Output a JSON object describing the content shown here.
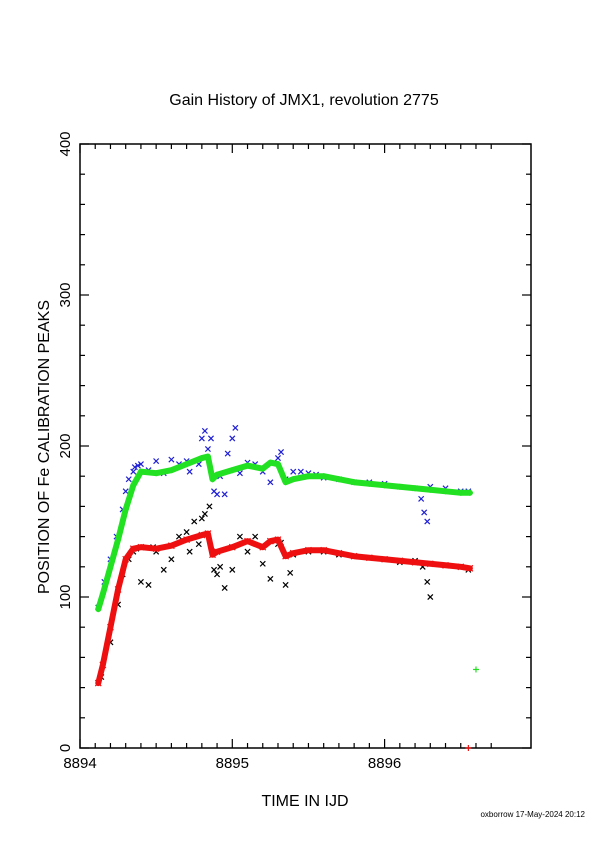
{
  "chart_data": {
    "type": "scatter",
    "title": "Gain History of JMX1, revolution 2775",
    "xlabel": "TIME IN IJD",
    "ylabel": "POSITION OF Fe CALIBRATION PEAKS",
    "xlim": [
      8894,
      8896.7
    ],
    "ylim": [
      0,
      400
    ],
    "x_ticks": [
      8894,
      8895,
      8896
    ],
    "y_ticks": [
      0,
      100,
      200,
      300,
      400
    ],
    "grid": false,
    "colors": {
      "upper_fit": "#22e022",
      "upper_points": "#1f1fd6",
      "lower_fit": "#ee1010",
      "lower_points": "#000000"
    },
    "series": [
      {
        "marker": "x",
        "color": "#1f1fd6",
        "x": [
          8894.12,
          8894.16,
          8894.2,
          8894.24,
          8894.28,
          8894.3,
          8894.32,
          8894.35,
          8894.36,
          8894.38,
          8894.4,
          8894.45,
          8894.5,
          8894.55,
          8894.6,
          8894.65,
          8894.7,
          8894.72,
          8894.78,
          8894.8,
          8894.82,
          8894.84,
          8894.86,
          8894.88,
          8894.9,
          8894.92,
          8894.95,
          8894.97,
          8895.0,
          8895.02,
          8895.05,
          8895.1,
          8895.15,
          8895.2,
          8895.25,
          8895.3,
          8895.32,
          8895.35,
          8895.4,
          8895.45,
          8895.5,
          8895.55,
          8895.6,
          8895.7,
          8895.8,
          8895.9,
          8896.0,
          8896.1,
          8896.2,
          8896.24,
          8896.26,
          8896.28,
          8896.3,
          8896.4,
          8896.5,
          8896.55
        ],
        "y": [
          93,
          110,
          125,
          140,
          158,
          170,
          178,
          183,
          186,
          187,
          188,
          184,
          190,
          182,
          191,
          188,
          190,
          183,
          188,
          205,
          210,
          198,
          205,
          170,
          168,
          180,
          168,
          195,
          205,
          212,
          182,
          189,
          188,
          183,
          176,
          192,
          196,
          178,
          183,
          183,
          182,
          181,
          179,
          178,
          176,
          176,
          175,
          173,
          172,
          165,
          156,
          150,
          173,
          172,
          170,
          170
        ]
      },
      {
        "name": "",
        "marker": "+",
        "color": "#22e022",
        "x": [
          8894.12,
          8894.15,
          8894.2,
          8894.25,
          8894.3,
          8894.35,
          8894.4,
          8894.5,
          8894.6,
          8894.7,
          8894.8,
          8894.84,
          8894.87,
          8894.9,
          8895.0,
          8895.1,
          8895.2,
          8895.25,
          8895.3,
          8895.35,
          8895.4,
          8895.5,
          8895.6,
          8895.7,
          8895.8,
          8895.9,
          8896.0,
          8896.1,
          8896.2,
          8896.3,
          8896.4,
          8896.5,
          8896.56
        ],
        "y": [
          92,
          102,
          120,
          138,
          158,
          174,
          183,
          182,
          184,
          188,
          192,
          193,
          178,
          181,
          184,
          187,
          185,
          189,
          188,
          176,
          178,
          180,
          180,
          178,
          176,
          175,
          174,
          173,
          172,
          171,
          170,
          169,
          169
        ]
      },
      {
        "marker": "x",
        "color": "#000000",
        "x": [
          8894.14,
          8894.2,
          8894.25,
          8894.28,
          8894.32,
          8894.35,
          8894.37,
          8894.4,
          8894.45,
          8894.48,
          8894.5,
          8894.55,
          8894.6,
          8894.65,
          8894.7,
          8894.72,
          8894.75,
          8894.78,
          8894.8,
          8894.82,
          8894.85,
          8894.88,
          8894.9,
          8894.92,
          8894.95,
          8895.0,
          8895.05,
          8895.1,
          8895.15,
          8895.2,
          8895.25,
          8895.3,
          8895.32,
          8895.35,
          8895.38,
          8895.4,
          8895.5,
          8895.6,
          8895.7,
          8895.8,
          8895.9,
          8896.0,
          8896.1,
          8896.2,
          8896.25,
          8896.28,
          8896.3,
          8896.4,
          8896.5,
          8896.55
        ],
        "y": [
          47,
          70,
          95,
          115,
          125,
          130,
          132,
          110,
          108,
          133,
          130,
          118,
          125,
          140,
          143,
          130,
          150,
          135,
          152,
          155,
          160,
          118,
          115,
          120,
          106,
          118,
          140,
          130,
          140,
          122,
          112,
          135,
          136,
          108,
          116,
          128,
          130,
          130,
          128,
          127,
          126,
          125,
          123,
          124,
          120,
          110,
          100,
          121,
          120,
          118
        ]
      },
      {
        "marker": "x",
        "color": "#ee1010",
        "x": [
          8894.12,
          8894.15,
          8894.2,
          8894.25,
          8894.3,
          8894.35,
          8894.4,
          8894.5,
          8894.6,
          8894.7,
          8894.8,
          8894.84,
          8894.87,
          8894.9,
          8895.0,
          8895.1,
          8895.2,
          8895.25,
          8895.3,
          8895.35,
          8895.4,
          8895.5,
          8895.6,
          8895.7,
          8895.8,
          8895.9,
          8896.0,
          8896.1,
          8896.2,
          8896.3,
          8896.4,
          8896.5,
          8896.56
        ],
        "y": [
          43,
          55,
          80,
          105,
          125,
          132,
          133,
          132,
          134,
          138,
          141,
          142,
          128,
          130,
          133,
          137,
          133,
          137,
          138,
          127,
          129,
          131,
          131,
          129,
          127,
          126,
          125,
          124,
          123,
          122,
          121,
          120,
          119
        ]
      }
    ],
    "extra_marks": [
      {
        "x": 8896.6,
        "y": 52,
        "marker": "+",
        "color": "#22e022"
      },
      {
        "x": 8896.55,
        "y": 0,
        "marker": "+",
        "color": "#ee1010"
      }
    ],
    "footer_note": "oxborrow 17-May-2024 20:12"
  }
}
